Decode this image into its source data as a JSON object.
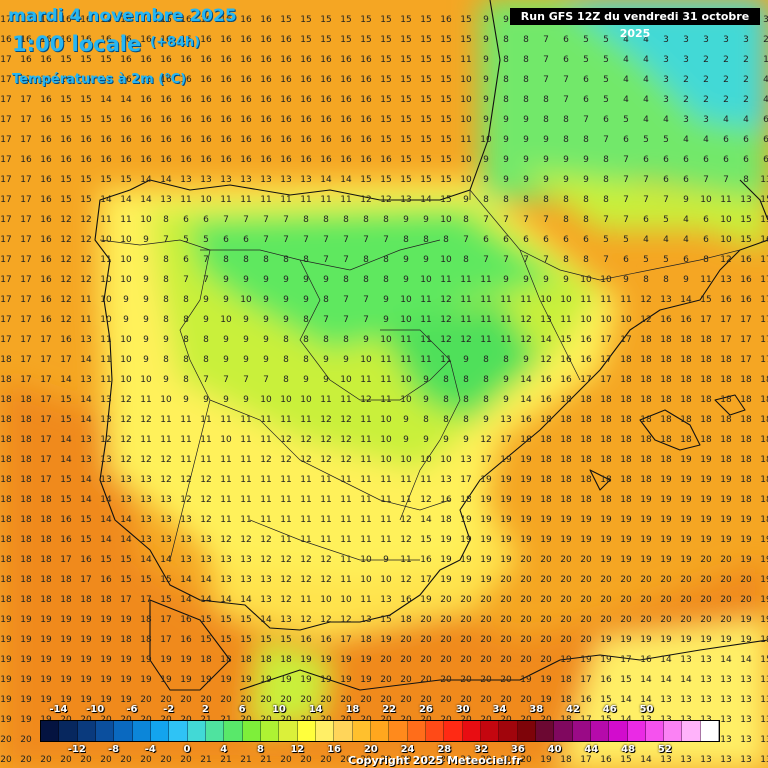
{
  "header": {
    "date_line": "mardi 4 novembre 2025",
    "time_line": "1:00 locale",
    "lead_time": "(+84h)",
    "variable": "Températures à 2m (°C)"
  },
  "run_label": "Run GFS 12Z du vendredi 31 octobre 2025",
  "copyright": "Copyright 2025 Meteociel.fr",
  "legend": {
    "top_labels": [
      "-14",
      "-10",
      "-6",
      "-2",
      "2",
      "6",
      "10",
      "14",
      "18",
      "22",
      "26",
      "30",
      "34",
      "38",
      "42",
      "46",
      "50"
    ],
    "bottom_labels": [
      "-12",
      "-8",
      "-4",
      "0",
      "4",
      "8",
      "12",
      "16",
      "20",
      "24",
      "28",
      "32",
      "36",
      "40",
      "44",
      "48",
      "52"
    ],
    "colors": [
      "#041340",
      "#07275e",
      "#0a3a7d",
      "#0b4f9e",
      "#0a69c0",
      "#0c86d9",
      "#13a4ee",
      "#2fc3f5",
      "#42d9d6",
      "#4fe39f",
      "#59e86a",
      "#7eef3a",
      "#aef233",
      "#dbf03a",
      "#ffff3c",
      "#ffef66",
      "#ffd55a",
      "#ffc02d",
      "#ffa71e",
      "#ff8a1c",
      "#ff6d1a",
      "#ff4a17",
      "#ff2a14",
      "#e80d12",
      "#c4060f",
      "#a1050c",
      "#7e0409",
      "#6c0832",
      "#80085f",
      "#9a0a86",
      "#b60aab",
      "#d20ccd",
      "#ea2ae5",
      "#f552ee",
      "#fb82f4",
      "#ffb3fa",
      "#ffffff"
    ]
  },
  "colors": {
    "sea_warm": "#f5a623",
    "sea_warmer": "#f08a1d",
    "land_mild": "#ffe34d",
    "land_cool": "#c9f03a",
    "land_cold": "#4fe05a",
    "far_green": "#72e86a",
    "coast_line": "#111111"
  },
  "grid_rows": [
    "17 15 16 16 16 16 16 16 16 16 16 16 16 16 15 15 15 15 15 15 15 15 16 15 9 9 9 8 8 8 7 6 6 5 5 4 4 3 3 3",
    "16 16 16 16 16 16 16 16 16 16 16 16 16 16 16 15 15 15 15 15 15 15 15 15 9 8 8 7 6 5 5 4 4 3 3 3 3 3 2 2",
    "17 16 16 15 15 15 16 16 16 16 16 16 16 16 16 16 16 16 16 15 15 15 15 11 9 8 8 7 6 5 5 4 4 3 3 2 2 2 1 2",
    "17 17 16 16 15 15 16 16 16 16 16 16 16 16 16 16 16 16 16 15 15 15 15 10 9 8 8 7 7 6 5 4 4 3 2 2 2 2 4 4",
    "17 17 16 15 15 14 14 16 16 16 16 16 16 16 16 16 16 16 16 15 15 15 15 10 9 8 8 8 7 6 5 4 4 3 2 2 2 2 4 4",
    "17 17 16 15 15 15 16 16 16 16 16 16 16 16 16 16 16 16 16 15 15 15 15 10 9 9 9 8 8 7 6 5 4 4 3 3 4 4 6 6",
    "17 17 16 16 16 16 16 16 16 16 16 16 16 16 16 16 16 16 16 15 15 15 15 11 10 9 9 9 8 8 7 6 5 5 4 4 6 6 6 6",
    "17 16 16 16 16 16 16 16 16 16 16 16 16 16 16 16 16 16 16 16 15 15 15 10 9 9 9 9 9 9 8 7 6 6 6 6 6 6 6 6",
    "17 17 16 15 15 15 15 14 14 13 13 13 13 13 13 13 14 14 15 15 15 15 15 10 9 9 9 9 9 9 8 7 7 6 6 7 7 8 13 13",
    "17 17 16 15 15 14 14 14 13 11 10 11 11 11 11 11 11 11 12 12 13 14 15 9 8 8 8 8 8 8 8 7 7 7 9 10 11 13 15 15",
    "17 17 16 12 12 11 11 10 8 6 6 7 7 7 7 8 8 8 8 8 9 9 10 8 7 7 7 7 8 8 7 7 6 5 4 6 10 15 15 16",
    "17 17 16 12 12 10 10 9 7 5 5 6 6 7 7 7 7 7 7 7 8 8 8 7 6 6 6 6 6 6 5 5 4 4 4 6 10 15 16 16",
    "17 17 16 12 12 11 10 9 8 6 7 8 8 8 8 8 7 7 8 8 9 9 10 8 7 7 7 7 8 8 7 6 5 5 6 8 12 16 17 17",
    "17 17 16 12 12 10 10 9 8 7 7 9 9 9 9 9 9 8 8 8 9 10 11 11 11 9 9 9 9 10 10 9 8 8 9 11 13 16 17 17",
    "17 17 16 12 11 10 9 9 8 8 9 9 10 9 9 9 8 7 7 9 10 11 12 11 11 11 11 10 10 11 11 11 12 13 14 15 16 16 17 17",
    "17 17 16 12 11 10 9 9 8 8 9 10 9 9 9 8 7 7 7 9 10 11 12 11 11 11 12 13 11 10 10 10 12 16 16 17 17 17 17 17",
    "17 17 17 16 13 11 10 9 9 8 8 9 9 9 8 8 8 8 9 10 11 11 12 12 11 11 12 14 15 16 17 17 18 18 18 18 17 17 17 17",
    "18 17 17 17 14 11 10 9 8 8 8 9 9 9 8 8 9 9 10 11 11 11 11 9 8 8 9 12 16 16 17 18 18 18 18 18 18 17 17 17",
    "18 17 17 14 13 11 10 10 9 8 7 7 7 7 8 9 9 10 11 11 10 9 8 8 8 9 14 16 16 17 17 18 18 18 18 18 18 18 18 18",
    "18 18 17 15 14 13 12 11 10 9 9 9 9 10 10 10 11 11 12 11 10 9 8 8 8 9 14 16 18 18 18 18 18 18 18 18 18 18 18 18",
    "18 18 17 15 14 13 12 12 11 11 11 11 11 11 11 11 12 12 11 10 9 8 8 8 9 13 16 18 18 18 18 18 18 18 18 18 18 18 18 18",
    "18 18 17 14 13 12 12 11 11 11 11 10 11 11 12 12 12 12 11 10 9 9 9 9 12 17 18 18 18 18 18 18 18 18 18 18 18 18 18 18",
    "18 18 17 14 13 13 12 12 12 11 11 11 11 12 12 12 12 12 11 10 10 10 10 13 17 19 19 18 18 18 18 18 18 18 19 19 18 18 18 18",
    "18 18 17 15 14 13 13 13 12 12 12 11 11 11 11 11 11 11 11 11 11 11 13 17 19 19 19 18 18 18 18 18 18 19 19 19 19 18 18 18",
    "18 18 18 15 14 14 13 13 13 12 12 11 11 11 11 11 11 11 11 11 11 12 16 18 19 19 19 18 18 18 18 18 19 19 19 19 19 18 18 18",
    "18 18 18 16 15 14 14 13 13 13 12 11 11 11 11 11 11 11 11 11 12 14 18 19 19 19 19 19 19 19 19 19 19 19 19 19 19 19 18 18",
    "18 18 18 16 15 14 14 13 13 13 13 12 12 12 11 11 11 11 11 11 12 15 19 19 19 19 19 19 19 19 19 19 19 19 19 19 19 19 19 19",
    "18 18 18 17 16 15 15 14 14 13 13 13 13 12 12 12 12 11 10 9 11 16 19 19 19 19 20 20 20 20 19 19 19 19 19 20 20 19 19 19",
    "18 18 18 18 17 16 15 15 15 14 14 13 13 13 12 12 12 11 10 10 12 17 19 19 19 20 20 20 20 20 20 20 20 20 20 20 20 20 19 19",
    "18 18 18 18 18 18 17 17 15 14 14 14 14 13 12 11 10 10 11 13 16 19 20 20 20 20 20 20 20 20 20 20 20 20 20 20 20 20 19 19",
    "19 19 19 19 19 19 19 18 17 16 15 15 15 14 13 12 12 12 13 15 18 20 20 20 20 20 20 20 20 20 20 20 20 20 20 20 20 19 19 19",
    "19 19 19 19 19 19 18 18 17 16 15 15 15 15 15 16 16 17 18 19 20 20 20 20 20 20 20 20 20 20 19 19 19 19 19 19 19 19 19 19",
    "19 19 19 19 19 19 19 19 19 19 18 18 18 18 18 19 19 19 19 20 20 20 20 20 20 20 20 20 19 19 19 17 16 14 13 13 14 14 15 15",
    "19 19 19 19 19 19 19 19 19 19 19 19 19 19 19 19 19 19 19 20 20 20 20 20 20 20 19 19 18 17 16 15 14 14 14 13 13 13 13 13",
    "19 19 19 19 19 19 19 20 20 20 20 20 20 20 20 20 20 20 20 20 20 20 20 20 20 20 20 19 18 16 15 14 14 13 13 13 13 13 13 13",
    "19 19 19 20 20 20 20 20 20 20 21 21 20 20 20 20 20 20 20 20 20 20 20 20 20 20 20 20 18 17 15 14 13 13 13 13 13 13 13 13",
    "20 20 20 20 20 20 20 20 20 20 21 21 21 21 20 20 20 20 20 20 20 20 20 20 20 20 20 19 18 16 15 14 13 13 13 13 13 13 13 13",
    "20 20 20 20 20 20 20 20 20 20 21 21 21 21 20 20 20 20 20 20 20 20 20 20 20 20 20 19 18 17 16 15 14 13 13 13 13 13 13 13"
  ]
}
